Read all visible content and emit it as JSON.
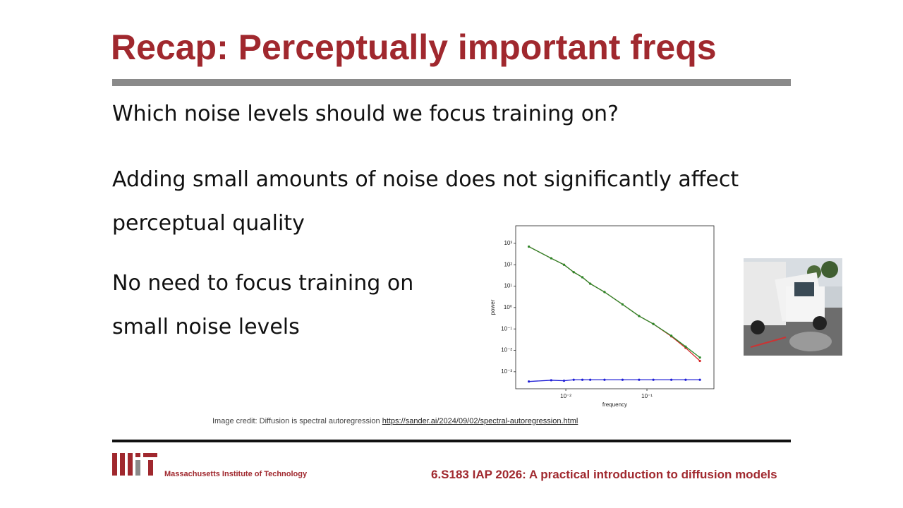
{
  "header": {
    "title": "Recap: Perceptually important freqs"
  },
  "body": {
    "paragraphs": [
      "Which noise levels should we focus training on?",
      "Adding small amounts of noise does not significantly affect perceptual quality",
      "No need to focus training on small noise levels"
    ]
  },
  "chart_data": {
    "type": "line",
    "xlabel": "frequency",
    "ylabel": "power",
    "xscale": "log",
    "yscale": "log",
    "x": [
      0.0035,
      0.0066,
      0.0095,
      0.0125,
      0.016,
      0.02,
      0.03,
      0.05,
      0.08,
      0.12,
      0.2,
      0.3,
      0.45
    ],
    "series": [
      {
        "color": "#d62728",
        "values": [
          700,
          200,
          100,
          45,
          26,
          13,
          5.3,
          1.4,
          0.4,
          0.17,
          0.045,
          0.013,
          0.0032
        ]
      },
      {
        "color": "#2a8a2a",
        "values": [
          700,
          200,
          100,
          45,
          26,
          13,
          5.3,
          1.4,
          0.4,
          0.17,
          0.048,
          0.015,
          0.0046
        ]
      },
      {
        "color": "#1f1fd6",
        "values": [
          0.00035,
          0.0004,
          0.00038,
          0.00042,
          0.00042,
          0.00042,
          0.00042,
          0.00042,
          0.00042,
          0.00042,
          0.00042,
          0.00042,
          0.00042
        ]
      }
    ],
    "xlim": [
      0.00241,
      0.67
    ],
    "ylim": [
      0.00016,
      6600
    ],
    "xticks": [
      {
        "value": 0.01,
        "label": "10⁻²"
      },
      {
        "value": 0.1,
        "label": "10⁻¹"
      }
    ],
    "yticks": [
      {
        "value": 1000,
        "label": "10³"
      },
      {
        "value": 100,
        "label": "10²"
      },
      {
        "value": 10,
        "label": "10¹"
      },
      {
        "value": 1,
        "label": "10⁰"
      },
      {
        "value": 0.1,
        "label": "10⁻¹"
      },
      {
        "value": 0.01,
        "label": "10⁻²"
      },
      {
        "value": 0.001,
        "label": "10⁻³"
      }
    ]
  },
  "credit": {
    "text": "Image credit: Diffusion is spectral autoregression",
    "link": "https://sander.ai/2024/09/02/spectral-autoregression.html"
  },
  "footer": {
    "institution": "Massachusetts Institute of Technology",
    "course": "6.S183 IAP 2026: A practical introduction to diffusion models"
  }
}
